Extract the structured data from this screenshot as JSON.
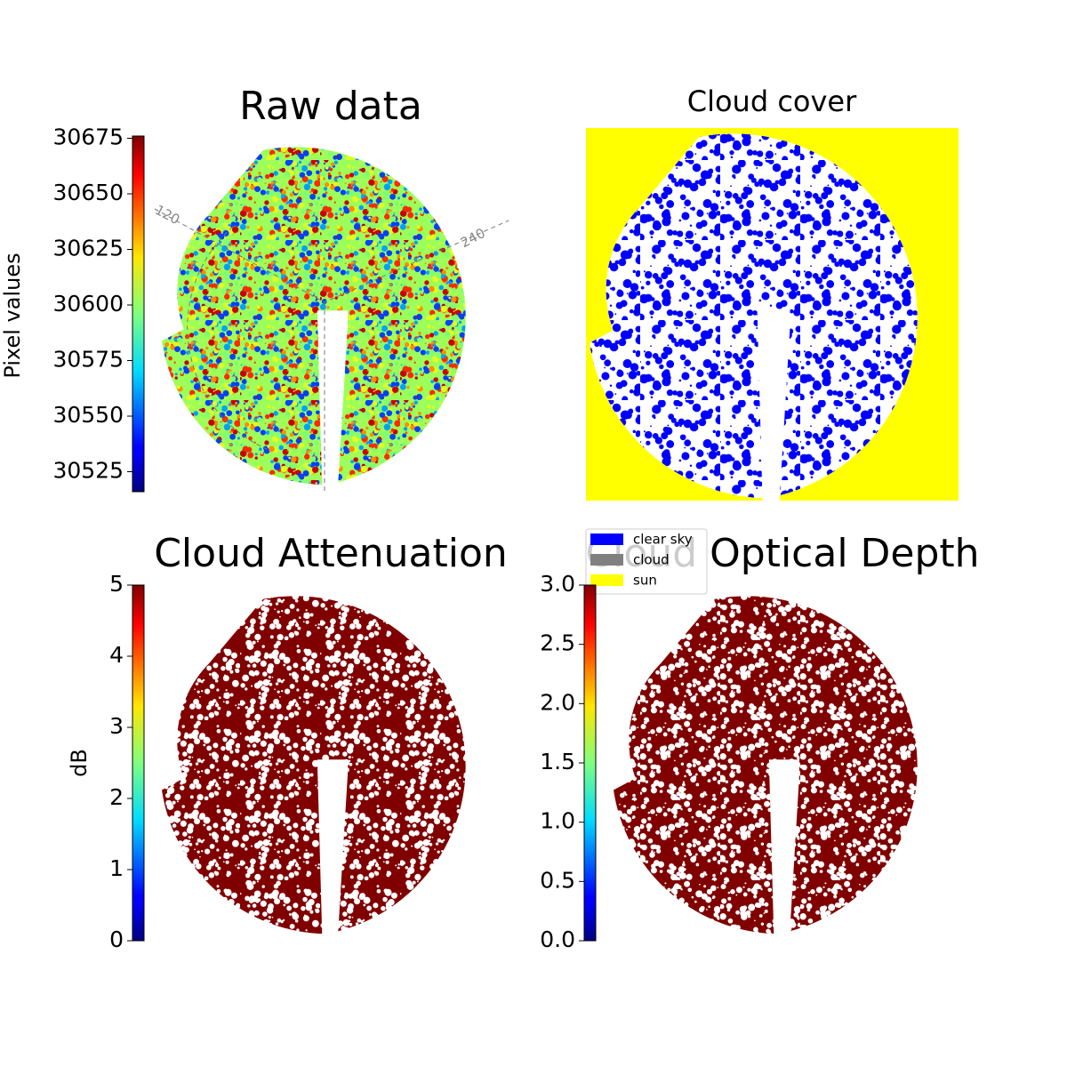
{
  "chart_data": [
    {
      "type": "image",
      "title": "Raw data",
      "cmap": "jet",
      "annotations": [
        "120",
        "240"
      ],
      "colorbar": {
        "label": "Pixel values",
        "lim": [
          30516,
          30676
        ],
        "ticks": [
          30525,
          30550,
          30575,
          30600,
          30625,
          30650,
          30675
        ]
      }
    },
    {
      "type": "mask",
      "title": "Cloud cover",
      "legend": [
        {
          "name": "clear sky",
          "color": "#0000ff"
        },
        {
          "name": "cloud",
          "color": "#808080"
        },
        {
          "name": "sun",
          "color": "#ffff00"
        }
      ]
    },
    {
      "type": "image",
      "title": "Cloud Attenuation",
      "cmap": "jet",
      "color": "#800000",
      "colorbar": {
        "label": "dB",
        "lim": [
          0,
          5
        ],
        "ticks": [
          0,
          1,
          2,
          3,
          4,
          5
        ]
      }
    },
    {
      "type": "image",
      "title": "Cloud Optical Depth",
      "cmap": "jet",
      "color": "#800000",
      "colorbar": {
        "lim": [
          0,
          3
        ],
        "ticks": [
          {
            "value": 0,
            "label": "0.0"
          },
          {
            "value": 0.5,
            "label": "0.5"
          },
          {
            "value": 1,
            "label": "1.0"
          },
          {
            "value": 1.5,
            "label": "1.5"
          },
          {
            "value": 2,
            "label": "2.0"
          },
          {
            "value": 2.5,
            "label": "2.5"
          },
          {
            "value": 3,
            "label": "3.0"
          }
        ]
      }
    }
  ]
}
